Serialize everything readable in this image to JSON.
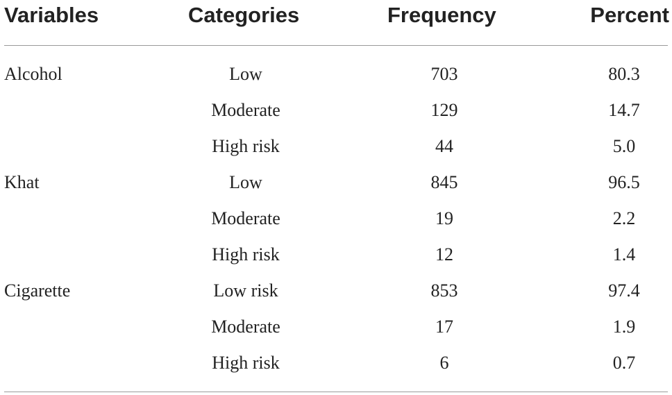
{
  "table": {
    "headers": {
      "variables": "Variables",
      "categories": "Categories",
      "frequency": "Frequency",
      "percent": "Percent"
    },
    "rows": [
      {
        "variable": "Alcohol",
        "category": "Low",
        "frequency": "703",
        "percent": "80.3"
      },
      {
        "variable": "",
        "category": "Moderate",
        "frequency": "129",
        "percent": "14.7"
      },
      {
        "variable": "",
        "category": "High risk",
        "frequency": "44",
        "percent": "5.0"
      },
      {
        "variable": "Khat",
        "category": "Low",
        "frequency": "845",
        "percent": "96.5"
      },
      {
        "variable": "",
        "category": "Moderate",
        "frequency": "19",
        "percent": "2.2"
      },
      {
        "variable": "",
        "category": "High risk",
        "frequency": "12",
        "percent": "1.4"
      },
      {
        "variable": "Cigarette",
        "category": "Low risk",
        "frequency": "853",
        "percent": "97.4"
      },
      {
        "variable": "",
        "category": "Moderate",
        "frequency": "17",
        "percent": "1.9"
      },
      {
        "variable": "",
        "category": "High risk",
        "frequency": "6",
        "percent": "0.7"
      }
    ]
  },
  "colors": {
    "text": "#222222",
    "rule": "#9a9a9a",
    "background": "#ffffff"
  }
}
